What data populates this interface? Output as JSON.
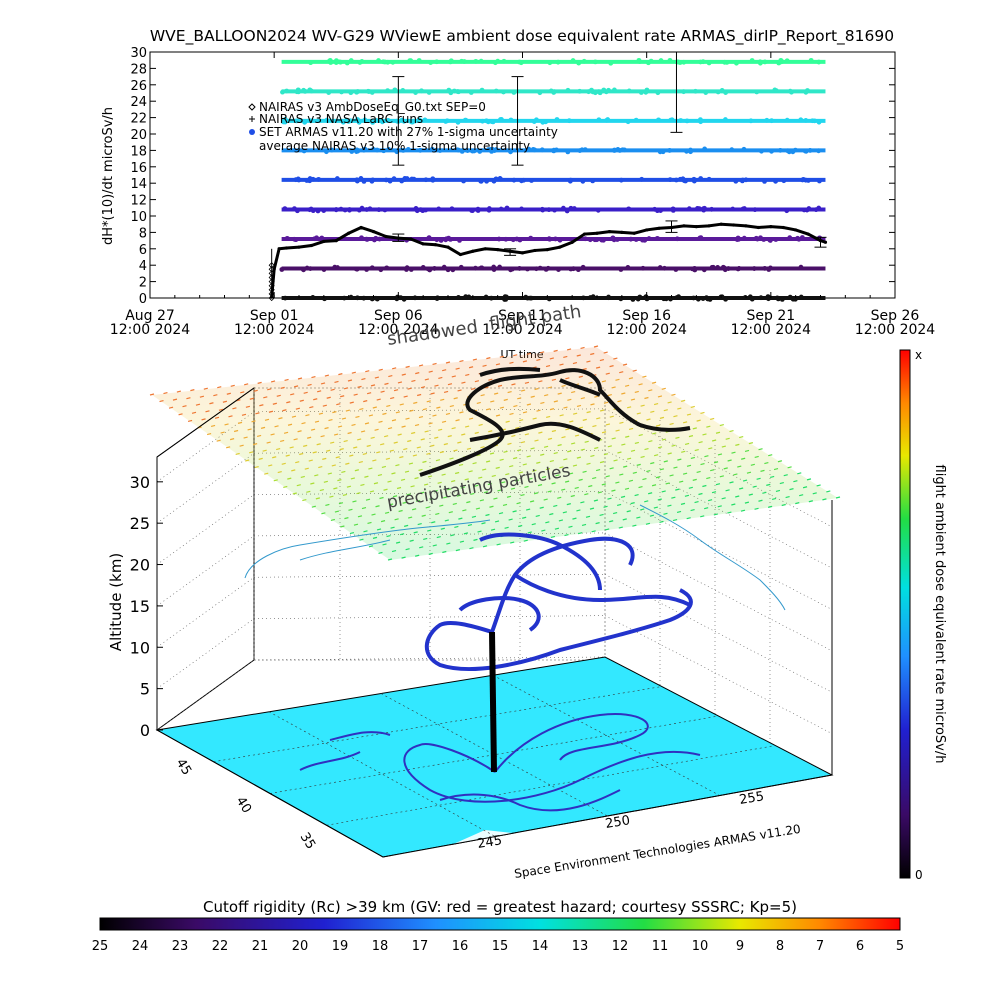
{
  "figure_title": "WVE_BALLOON2024 WV-G29 WViewE ambient dose equivalent rate ARMAS_dirIP_Report_81690",
  "chart_data": [
    {
      "type": "line",
      "ylabel": "dH*(10)/dt microSv/h",
      "xlabel": "UT time",
      "ylim": [
        0,
        30
      ],
      "yticks": [
        0,
        2,
        4,
        6,
        8,
        10,
        12,
        14,
        16,
        18,
        20,
        22,
        24,
        26,
        28,
        30
      ],
      "xlim": [
        0,
        30
      ],
      "xticks": [
        {
          "x": 0,
          "l1": "Aug 27",
          "l2": "12:00 2024"
        },
        {
          "x": 5,
          "l1": "Sep 01",
          "l2": "12:00 2024"
        },
        {
          "x": 10,
          "l1": "Sep 06",
          "l2": "12:00 2024"
        },
        {
          "x": 15,
          "l1": "Sep 11",
          "l2": "12:00 2024"
        },
        {
          "x": 20,
          "l1": "Sep 16",
          "l2": "12:00 2024"
        },
        {
          "x": 25,
          "l1": "Sep 21",
          "l2": "12:00 2024"
        },
        {
          "x": 30,
          "l1": "Sep 26",
          "l2": "12:00 2024"
        }
      ],
      "legend": [
        {
          "symbol": "diamond",
          "text": "NAIRAS v3 AmbDoseEq_G0.txt SEP=0"
        },
        {
          "symbol": "plus",
          "text": "NAIRAS v3 NASA LaRC runs"
        },
        {
          "symbol": "dot",
          "text": "SET ARMAS v11.20 with 27% 1-sigma uncertainty"
        },
        {
          "symbol": "none",
          "text": "average NAIRAS v3 10% 1-sigma uncertainty"
        }
      ],
      "bands": [
        {
          "y": 28.8,
          "color": "#33ff99"
        },
        {
          "y": 25.2,
          "color": "#2fe7c8"
        },
        {
          "y": 21.6,
          "color": "#22d6ee"
        },
        {
          "y": 18.0,
          "color": "#1a8ef0"
        },
        {
          "y": 14.4,
          "color": "#1f4ee6"
        },
        {
          "y": 10.8,
          "color": "#3a1fc8"
        },
        {
          "y": 7.2,
          "color": "#5a1a9a"
        },
        {
          "y": 3.6,
          "color": "#4a1068"
        },
        {
          "y": 0.0,
          "color": "#111111"
        }
      ],
      "band_x_range": [
        5.3,
        27.2
      ],
      "series": [
        {
          "color": "#000000",
          "x": [
            4.9,
            5.0,
            5.2,
            5.5,
            6.0,
            6.5,
            7.0,
            7.5,
            8.0,
            8.5,
            9.0,
            9.5,
            10.0,
            10.5,
            11.0,
            11.5,
            12.0,
            12.5,
            13.0,
            13.5,
            14.0,
            14.5,
            15.0,
            15.5,
            16.0,
            16.5,
            17.0,
            17.5,
            18.0,
            18.5,
            19.0,
            19.5,
            20.0,
            20.5,
            21.0,
            21.5,
            22.0,
            22.5,
            23.0,
            23.5,
            24.0,
            24.5,
            25.0,
            25.5,
            26.0,
            26.5,
            27.0,
            27.2
          ],
          "y": [
            0.1,
            3.5,
            6.0,
            6.1,
            6.2,
            6.4,
            6.9,
            7.0,
            7.9,
            8.6,
            8.1,
            7.5,
            7.3,
            7.2,
            6.6,
            6.5,
            6.2,
            5.3,
            5.7,
            6.0,
            5.9,
            5.7,
            5.5,
            5.8,
            5.9,
            6.2,
            6.8,
            7.8,
            7.9,
            8.1,
            8.0,
            7.9,
            8.3,
            8.5,
            8.6,
            8.8,
            8.7,
            8.8,
            9.0,
            8.9,
            8.8,
            8.6,
            8.7,
            8.6,
            8.3,
            7.8,
            7.0,
            6.8
          ]
        }
      ],
      "error_bars": [
        {
          "x": 10.0,
          "lo": 16.2,
          "hi": 27.0
        },
        {
          "x": 14.8,
          "lo": 16.2,
          "hi": 27.0
        },
        {
          "x": 21.2,
          "lo": 20.2,
          "hi": 30.5
        },
        {
          "x": 10.0,
          "lo": 6.9,
          "hi": 7.8
        },
        {
          "x": 14.5,
          "lo": 5.2,
          "hi": 6.0
        },
        {
          "x": 21.0,
          "lo": 8.0,
          "hi": 9.4
        },
        {
          "x": 27.0,
          "lo": 6.2,
          "hi": 7.4
        }
      ]
    },
    {
      "type": "scatter",
      "ylabel": "Altitude (km)",
      "zlim": [
        0,
        33
      ],
      "zticks": [
        0,
        5,
        10,
        15,
        20,
        25,
        30
      ],
      "lat_ticks": [
        "45",
        "40",
        "35"
      ],
      "lon_ticks": [
        "245",
        "250",
        "255"
      ],
      "annotations": {
        "top_path": "flight path",
        "shadowed": "shadowed",
        "precip": "precipitating particles",
        "credit": "Space Environment Technologies ARMAS v11.20"
      }
    }
  ],
  "right_colorbar": {
    "label": "flight ambient dose equivalent rate microSv/h",
    "top_label": "x",
    "bottom_label": "0"
  },
  "bottom_colorbar": {
    "title": "Cutoff rigidity (Rc) >39 km (GV: red = greatest hazard; courtesy SSSRC; Kp=5)",
    "ticks": [
      "25",
      "24",
      "23",
      "22",
      "21",
      "20",
      "19",
      "18",
      "17",
      "16",
      "15",
      "14",
      "13",
      "12",
      "11",
      "10",
      "9",
      "8",
      "7",
      "6",
      "5"
    ]
  },
  "colors": {
    "ocean": "#33e8ff",
    "floor_grid": "#333333"
  }
}
